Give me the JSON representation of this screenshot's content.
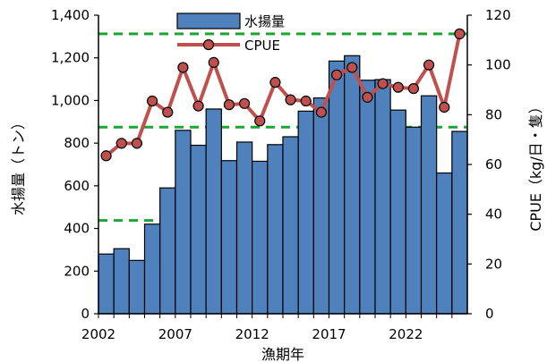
{
  "chart_data": {
    "type": "bar",
    "x": [
      2002,
      2003,
      2004,
      2005,
      2006,
      2007,
      2008,
      2009,
      2010,
      2011,
      2012,
      2013,
      2014,
      2015,
      2016,
      2017,
      2018,
      2019,
      2020,
      2021,
      2022,
      2023,
      2024,
      2025
    ],
    "xticks": [
      "2002",
      "2007",
      "2012",
      "2017",
      "2022"
    ],
    "xlabel": "漁期年",
    "ylabel": "水揚量（トン）",
    "ylabel_right": "CPUE（kg/日・隻）",
    "ylim": [
      0,
      1400
    ],
    "ylim_right": [
      0,
      120
    ],
    "yticks": [
      "0",
      "200",
      "400",
      "600",
      "800",
      "1,000",
      "1,200",
      "1,400"
    ],
    "yticks_right": [
      "0",
      "20",
      "40",
      "60",
      "80",
      "100",
      "120"
    ],
    "series": [
      {
        "name": "水揚量",
        "type": "bar",
        "axis": "left",
        "color": "#4f81bd",
        "values": [
          280,
          305,
          250,
          420,
          590,
          860,
          790,
          960,
          718,
          805,
          715,
          793,
          830,
          950,
          1012,
          1185,
          1210,
          1095,
          1098,
          955,
          875,
          1022,
          660,
          855
        ]
      },
      {
        "name": "CPUE",
        "type": "line",
        "axis": "right",
        "color": "#c0504d",
        "values": [
          63.5,
          68.5,
          68.5,
          85.5,
          81,
          99,
          83.5,
          101,
          84,
          84.5,
          77.5,
          93,
          86,
          85.5,
          81,
          96,
          99,
          87,
          92.5,
          91,
          90.5,
          100,
          83,
          112.5
        ]
      }
    ],
    "reference_lines_right": [
      37.5,
      75,
      112.5
    ],
    "reference_line_color": "#1aa632",
    "legend": "top-center",
    "grid": false
  }
}
